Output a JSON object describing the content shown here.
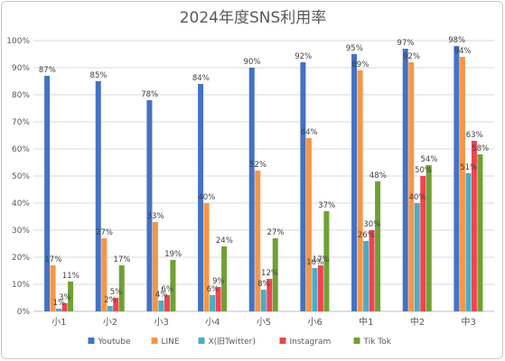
{
  "chart_data": {
    "type": "bar",
    "title": "2024年度SNS利用率",
    "categories": [
      "小1",
      "小2",
      "小3",
      "小4",
      "小5",
      "小6",
      "中1",
      "中2",
      "中3"
    ],
    "series": [
      {
        "name": "Youtube",
        "color": "#4472c4",
        "values": [
          87,
          85,
          78,
          84,
          90,
          92,
          95,
          97,
          98
        ],
        "labels": [
          "87%",
          "85%",
          "78%",
          "84%",
          "90%",
          "92%",
          "95%",
          "97%",
          "98%"
        ]
      },
      {
        "name": "LINE",
        "color": "#f79646",
        "values": [
          17,
          27,
          33,
          40,
          52,
          64,
          89,
          92,
          94
        ],
        "labels": [
          "17%",
          "27%",
          "33%",
          "40%",
          "52%",
          "64%",
          "89%",
          "92%",
          "94%"
        ]
      },
      {
        "name": "X(旧Twitter)",
        "color": "#4bacc6",
        "values": [
          1,
          2,
          4,
          6,
          8,
          16,
          26,
          40,
          51
        ],
        "labels": [
          "1%",
          "2%",
          "4%",
          "6%",
          "8%",
          "16%",
          "26%",
          "40%",
          "51%"
        ]
      },
      {
        "name": "Instagram",
        "color": "#ef4550",
        "values": [
          3,
          5,
          6,
          9,
          12,
          17,
          30,
          50,
          63
        ],
        "labels": [
          "3%",
          "5%",
          "6%",
          "9%",
          "12%",
          "17%",
          "30%",
          "50%",
          "63%"
        ]
      },
      {
        "name": "Tik Tok",
        "color": "#70a035",
        "values": [
          11,
          17,
          19,
          24,
          27,
          37,
          48,
          54,
          58
        ],
        "labels": [
          "11%",
          "17%",
          "19%",
          "24%",
          "27%",
          "37%",
          "48%",
          "54%",
          "58%"
        ]
      }
    ],
    "yticks": [
      "0%",
      "10%",
      "20%",
      "30%",
      "40%",
      "50%",
      "60%",
      "70%",
      "80%",
      "90%",
      "100%"
    ],
    "ylim": [
      0,
      100
    ],
    "grid": true,
    "legend_position": "bottom"
  }
}
